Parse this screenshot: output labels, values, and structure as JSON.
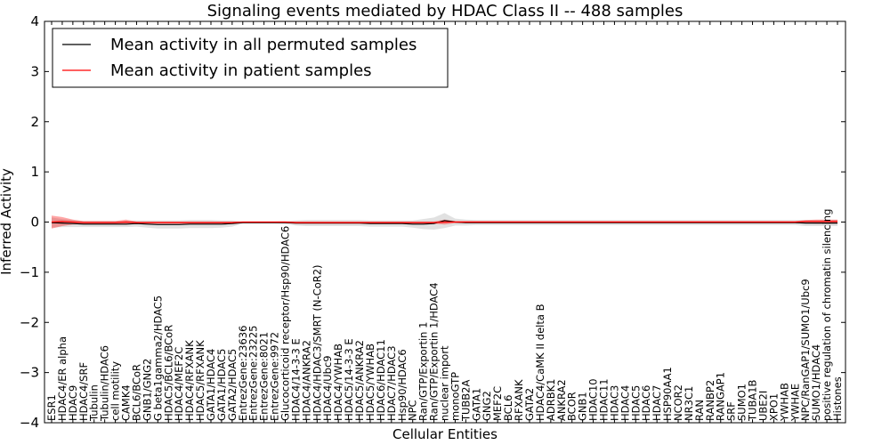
{
  "chart_data": {
    "type": "line",
    "title": "Signaling events mediated by HDAC Class II -- 488 samples",
    "xlabel": "Cellular Entities",
    "ylabel": "Inferred Activity",
    "ylim": [
      -4,
      4
    ],
    "yticks": [
      "4",
      "3",
      "2",
      "1",
      "0",
      "−1",
      "−2",
      "−3",
      "−4"
    ],
    "legend": {
      "placement": "top-left",
      "entries": [
        {
          "name": "Mean activity in all permuted samples",
          "color": "#000000"
        },
        {
          "name": "Mean activity in patient samples",
          "color": "#ff0000"
        }
      ]
    },
    "categories": [
      "ESR1",
      "HDAC4/ER alpha",
      "HDAC9",
      "HDAC4/SRF",
      "Tubulin",
      "Tubulin/HDAC6",
      "cell motility",
      "CAMK4",
      "BCL6/BCoR",
      "GNB1/GNG2",
      "G beta1gamma2/HDAC5",
      "HDAC5/BCL6/BCoR",
      "HDAC4/MEF2C",
      "HDAC4/RFXANK",
      "HDAC5/RFXANK",
      "GATA1/HDAC4",
      "GATA1/HDAC5",
      "GATA2/HDAC5",
      "EntrezGene:23636",
      "EntrezGene:23225",
      "EntrezGene:8021",
      "EntrezGene:9972",
      "Glucocorticoid receptor/Hsp90/HDAC6",
      "HDAC4/14-3-3 E",
      "HDAC4/ANKRA2",
      "HDAC4/HDAC3/SMRT (N-CoR2)",
      "HDAC4/Ubc9",
      "HDAC4/YWHAB",
      "HDAC5/14-3-3 E",
      "HDAC5/ANKRA2",
      "HDAC5/YWHAB",
      "HDAC6/HDAC11",
      "HDAC7/HDAC3",
      "Hsp90/HDAC6",
      "NPC",
      "Ran/GTP/Exportin 1",
      "Ran/GTP/Exportin 1/HDAC4",
      "nuclear import",
      "monoGTP",
      "TUBB2A",
      "GATA1",
      "GNG2",
      "MEF2C",
      "BCL6",
      "RFXANK",
      "GATA2",
      "HDAC4/CaMK II delta B",
      "ADRBK1",
      "ANKRA2",
      "BCOR",
      "GNB1",
      "HDAC10",
      "HDAC11",
      "HDAC3",
      "HDAC4",
      "HDAC5",
      "HDAC6",
      "HDAC7",
      "HSP90AA1",
      "NCOR2",
      "NR3C1",
      "RAN",
      "RANBP2",
      "RANGAP1",
      "SRF",
      "SUMO1",
      "TUBA1B",
      "UBE2I",
      "XPO1",
      "YWHAB",
      "YWHAE",
      "NPC/RanGAP1/SUMO1/Ubc9",
      "SUMO1/HDAC4",
      "positive regulation of chromatin silencing",
      "Histones"
    ],
    "series": [
      {
        "name": "Mean activity in all permuted samples",
        "values": [
          -0.01,
          -0.02,
          -0.03,
          -0.04,
          -0.04,
          -0.04,
          -0.04,
          -0.04,
          -0.03,
          -0.04,
          -0.05,
          -0.05,
          -0.05,
          -0.04,
          -0.04,
          -0.04,
          -0.04,
          -0.03,
          -0.01,
          -0.01,
          -0.01,
          -0.01,
          -0.01,
          -0.02,
          -0.02,
          -0.02,
          -0.02,
          -0.02,
          -0.02,
          -0.02,
          -0.03,
          -0.03,
          -0.03,
          -0.03,
          -0.04,
          -0.04,
          -0.03,
          0.03,
          0.0,
          -0.01,
          -0.01,
          -0.01,
          -0.01,
          -0.01,
          -0.01,
          -0.01,
          -0.01,
          -0.01,
          -0.01,
          -0.01,
          -0.01,
          -0.01,
          -0.01,
          -0.01,
          -0.01,
          -0.01,
          -0.01,
          -0.01,
          -0.01,
          -0.01,
          -0.01,
          -0.01,
          -0.01,
          -0.01,
          -0.01,
          -0.01,
          -0.01,
          -0.01,
          -0.01,
          -0.01,
          -0.01,
          -0.02,
          -0.02,
          -0.02,
          -0.02
        ],
        "band": [
          0.1,
          0.08,
          0.07,
          0.06,
          0.06,
          0.06,
          0.06,
          0.06,
          0.06,
          0.07,
          0.08,
          0.08,
          0.08,
          0.08,
          0.08,
          0.08,
          0.07,
          0.06,
          0.02,
          0.02,
          0.02,
          0.02,
          0.03,
          0.05,
          0.06,
          0.06,
          0.06,
          0.06,
          0.06,
          0.06,
          0.06,
          0.06,
          0.06,
          0.06,
          0.07,
          0.1,
          0.12,
          0.15,
          0.07,
          0.06,
          0.05,
          0.05,
          0.05,
          0.05,
          0.05,
          0.05,
          0.05,
          0.05,
          0.05,
          0.05,
          0.05,
          0.05,
          0.05,
          0.05,
          0.05,
          0.05,
          0.05,
          0.05,
          0.05,
          0.05,
          0.05,
          0.05,
          0.05,
          0.05,
          0.05,
          0.05,
          0.05,
          0.05,
          0.05,
          0.05,
          0.05,
          0.06,
          0.06,
          0.06,
          0.06
        ]
      },
      {
        "name": "Mean activity in patient samples",
        "values": [
          0.0,
          0.01,
          0.0,
          -0.01,
          -0.01,
          -0.01,
          -0.01,
          0.0,
          -0.01,
          -0.01,
          -0.01,
          -0.01,
          -0.01,
          -0.01,
          -0.01,
          -0.01,
          -0.01,
          -0.01,
          0.0,
          0.0,
          0.0,
          0.0,
          0.0,
          -0.01,
          -0.01,
          -0.01,
          -0.01,
          -0.01,
          -0.01,
          -0.01,
          -0.01,
          -0.01,
          -0.01,
          -0.01,
          -0.01,
          -0.01,
          -0.01,
          0.0,
          0.0,
          0.0,
          0.0,
          0.0,
          0.0,
          0.0,
          0.0,
          0.0,
          0.0,
          0.0,
          0.0,
          0.0,
          0.0,
          0.0,
          0.0,
          0.0,
          0.0,
          0.0,
          0.0,
          0.0,
          0.0,
          0.0,
          0.0,
          0.0,
          0.0,
          0.0,
          0.0,
          0.0,
          0.0,
          0.0,
          0.0,
          0.0,
          0.0,
          0.01,
          0.01,
          0.01,
          0.01
        ],
        "band": [
          0.13,
          0.09,
          0.05,
          0.03,
          0.03,
          0.03,
          0.03,
          0.05,
          0.02,
          0.02,
          0.02,
          0.02,
          0.02,
          0.02,
          0.02,
          0.02,
          0.02,
          0.02,
          0.01,
          0.01,
          0.01,
          0.01,
          0.01,
          0.02,
          0.02,
          0.02,
          0.02,
          0.02,
          0.02,
          0.02,
          0.02,
          0.02,
          0.02,
          0.02,
          0.02,
          0.02,
          0.02,
          0.05,
          0.02,
          0.02,
          0.02,
          0.02,
          0.02,
          0.02,
          0.02,
          0.02,
          0.02,
          0.02,
          0.02,
          0.02,
          0.02,
          0.02,
          0.02,
          0.02,
          0.02,
          0.02,
          0.02,
          0.02,
          0.02,
          0.02,
          0.02,
          0.02,
          0.02,
          0.02,
          0.02,
          0.02,
          0.02,
          0.02,
          0.02,
          0.02,
          0.02,
          0.03,
          0.04,
          0.04,
          0.04
        ]
      }
    ]
  }
}
